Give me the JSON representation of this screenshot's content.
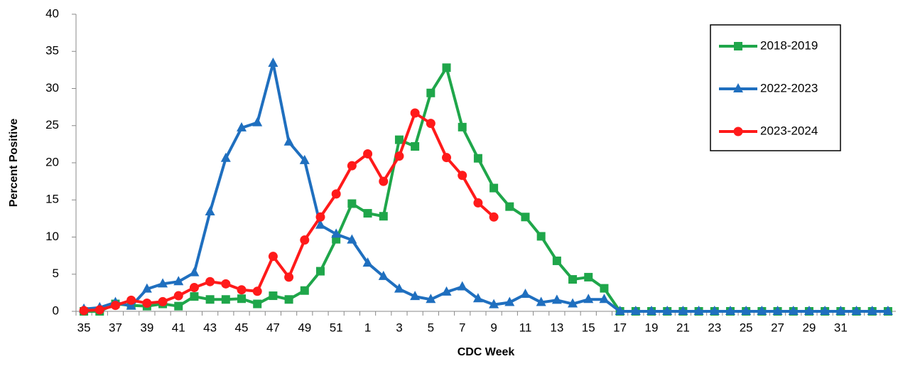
{
  "chart_data": {
    "type": "line",
    "y_label": "Percent Positive",
    "x_label": "CDC Week",
    "categories": [
      "35",
      null,
      "37",
      null,
      "39",
      null,
      "41",
      null,
      "43",
      null,
      "45",
      null,
      "47",
      null,
      "49",
      null,
      "51",
      null,
      "1",
      null,
      "3",
      null,
      "5",
      null,
      "7",
      null,
      "9",
      null,
      "11",
      null,
      "13",
      null,
      "15",
      null,
      "17",
      null,
      "19",
      null,
      "21",
      null,
      "23",
      null,
      "25",
      null,
      "27",
      null,
      "29",
      null,
      "31",
      null,
      null,
      null
    ],
    "series": [
      {
        "name": "2018-2019",
        "color": "#1fa64a",
        "marker": "square",
        "values": [
          0,
          0,
          1.0,
          0.8,
          0.7,
          1.0,
          0.7,
          2.0,
          1.6,
          1.6,
          1.7,
          1.0,
          2.1,
          1.6,
          2.8,
          5.4,
          9.7,
          14.5,
          13.2,
          12.8,
          23.1,
          22.2,
          29.4,
          32.8,
          24.8,
          20.6,
          16.6,
          14.1,
          12.7,
          10.1,
          6.8,
          4.3,
          4.6,
          3.1,
          0,
          0,
          0,
          0,
          0,
          0,
          0,
          0,
          0,
          0,
          0,
          0,
          0,
          0,
          0,
          0,
          0,
          0
        ]
      },
      {
        "name": "2022-2023",
        "color": "#1f6fbf",
        "marker": "triangle",
        "values": [
          0.3,
          0.5,
          1.2,
          0.7,
          3.0,
          3.7,
          4.0,
          5.2,
          13.4,
          20.6,
          24.7,
          25.4,
          33.4,
          22.8,
          20.3,
          11.6,
          10.4,
          9.6,
          6.5,
          4.7,
          3.0,
          2.0,
          1.6,
          2.6,
          3.3,
          1.7,
          0.9,
          1.2,
          2.3,
          1.2,
          1.5,
          1.0,
          1.6,
          1.6,
          0,
          0,
          0,
          0,
          0,
          0,
          0,
          0,
          0,
          0,
          0,
          0,
          0,
          0,
          0,
          0,
          0,
          0
        ]
      },
      {
        "name": "2023-2024",
        "color": "#ff1a1a",
        "marker": "circle",
        "values": [
          0.1,
          0.2,
          0.8,
          1.5,
          1.1,
          1.3,
          2.1,
          3.2,
          4.0,
          3.7,
          2.9,
          2.7,
          7.4,
          4.6,
          9.6,
          12.7,
          15.8,
          19.6,
          21.2,
          17.5,
          20.9,
          26.7,
          25.3,
          20.7,
          18.3,
          14.6,
          12.7,
          null,
          null,
          null,
          null,
          null,
          null,
          null,
          null,
          null,
          null,
          null,
          null,
          null,
          null,
          null,
          null,
          null,
          null,
          null,
          null,
          null,
          null,
          null,
          null,
          null
        ]
      }
    ],
    "ylim": [
      0,
      40
    ],
    "yticks": [
      0,
      5,
      10,
      15,
      20,
      25,
      30,
      35,
      40
    ],
    "grid": false
  }
}
